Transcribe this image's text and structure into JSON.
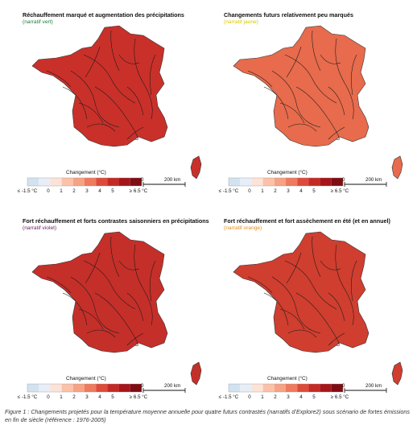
{
  "legend": {
    "title": "Changement (°C)",
    "ticks": [
      "≤ -1.5 °C",
      "0",
      "1",
      "2",
      "3",
      "4",
      "5",
      "≥ 6.5 °C"
    ],
    "colors": [
      "#d3e2f1",
      "#e7eef7",
      "#fde3d7",
      "#fbc2a9",
      "#f7a284",
      "#ef7a5e",
      "#de4b3a",
      "#c42a24",
      "#a5151a",
      "#7e0c12"
    ]
  },
  "scale": {
    "zero": "0",
    "distance": "200 km"
  },
  "panels": [
    {
      "title": "Réchauffement marqué et augmentation des précipitations",
      "subtitle": "(narratif vert)",
      "subtitle_color": "#1f7a3a",
      "fill": "#c9302a"
    },
    {
      "title": "Changements futurs relativement peu marqués",
      "subtitle": "(narratif jaune)",
      "subtitle_color": "#d9c800",
      "fill": "#e76b4c"
    },
    {
      "title": "Fort réchauffement et forts contrastes saisonniers en précipitations",
      "subtitle": "(narratif violet)",
      "subtitle_color": "#6b2266",
      "fill": "#c52f29"
    },
    {
      "title": "Fort réchauffement et fort assèchement en été (et en annuel)",
      "subtitle": "(narratif orange)",
      "subtitle_color": "#e88a1a",
      "fill": "#cf3e2f"
    }
  ],
  "caption": "Figure 1 : Changements projetés pour la température moyenne annuelle pour quatre futurs contrastés (narratifs d’Explore2) sous scénario de fortes émissions en fin de siècle (référence : 1976-2005)"
}
